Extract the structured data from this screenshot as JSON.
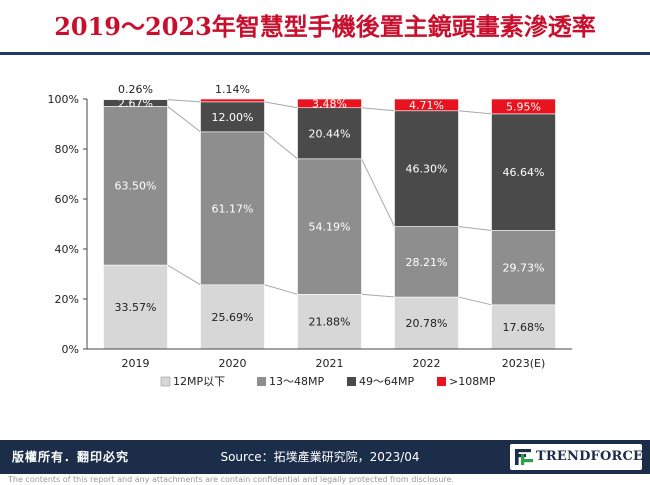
{
  "title": "2019～2023年智慧型手機後置主鏡頭畫素滲透率",
  "footer": {
    "rights": "版權所有．翻印必究",
    "source": "Source：拓墣產業研究院，2023/04",
    "brand": "TRENDFORCE",
    "disclaimer": "The contents of this report and any attachments are contain confidential and legally protected from disclosure."
  },
  "colors": {
    "title": "#c8102e",
    "series": [
      "#d7d7d7",
      "#8e8e8e",
      "#4a4a4a",
      "#e8131f"
    ],
    "footer_bg": "#1c2d4a"
  },
  "chart_data": {
    "type": "bar",
    "stacked": true,
    "categories": [
      "2019",
      "2020",
      "2021",
      "2022",
      "2023(E)"
    ],
    "series": [
      {
        "name": "12MP以下",
        "values": [
          33.57,
          25.69,
          21.88,
          20.78,
          17.68
        ]
      },
      {
        "name": "13～48MP",
        "values": [
          63.5,
          61.17,
          54.19,
          28.21,
          29.73
        ]
      },
      {
        "name": "49～64MP",
        "values": [
          2.67,
          12.0,
          20.44,
          46.3,
          46.64
        ]
      },
      {
        "name": ">108MP",
        "values": [
          0.26,
          1.14,
          3.48,
          4.71,
          5.95
        ]
      }
    ],
    "labels": [
      [
        "33.57%",
        "25.69%",
        "21.88%",
        "20.78%",
        "17.68%"
      ],
      [
        "63.50%",
        "61.17%",
        "54.19%",
        "28.21%",
        "29.73%"
      ],
      [
        "2.67%",
        "12.00%",
        "20.44%",
        "46.30%",
        "46.64%"
      ],
      [
        "0.26%",
        "1.14%",
        "3.48%",
        "4.71%",
        "5.95%"
      ]
    ],
    "y_ticks": [
      "0%",
      "20%",
      "40%",
      "60%",
      "80%",
      "100%"
    ],
    "ylim": [
      0,
      100
    ],
    "grid": false,
    "connector_lines": true,
    "legend_position": "bottom"
  }
}
